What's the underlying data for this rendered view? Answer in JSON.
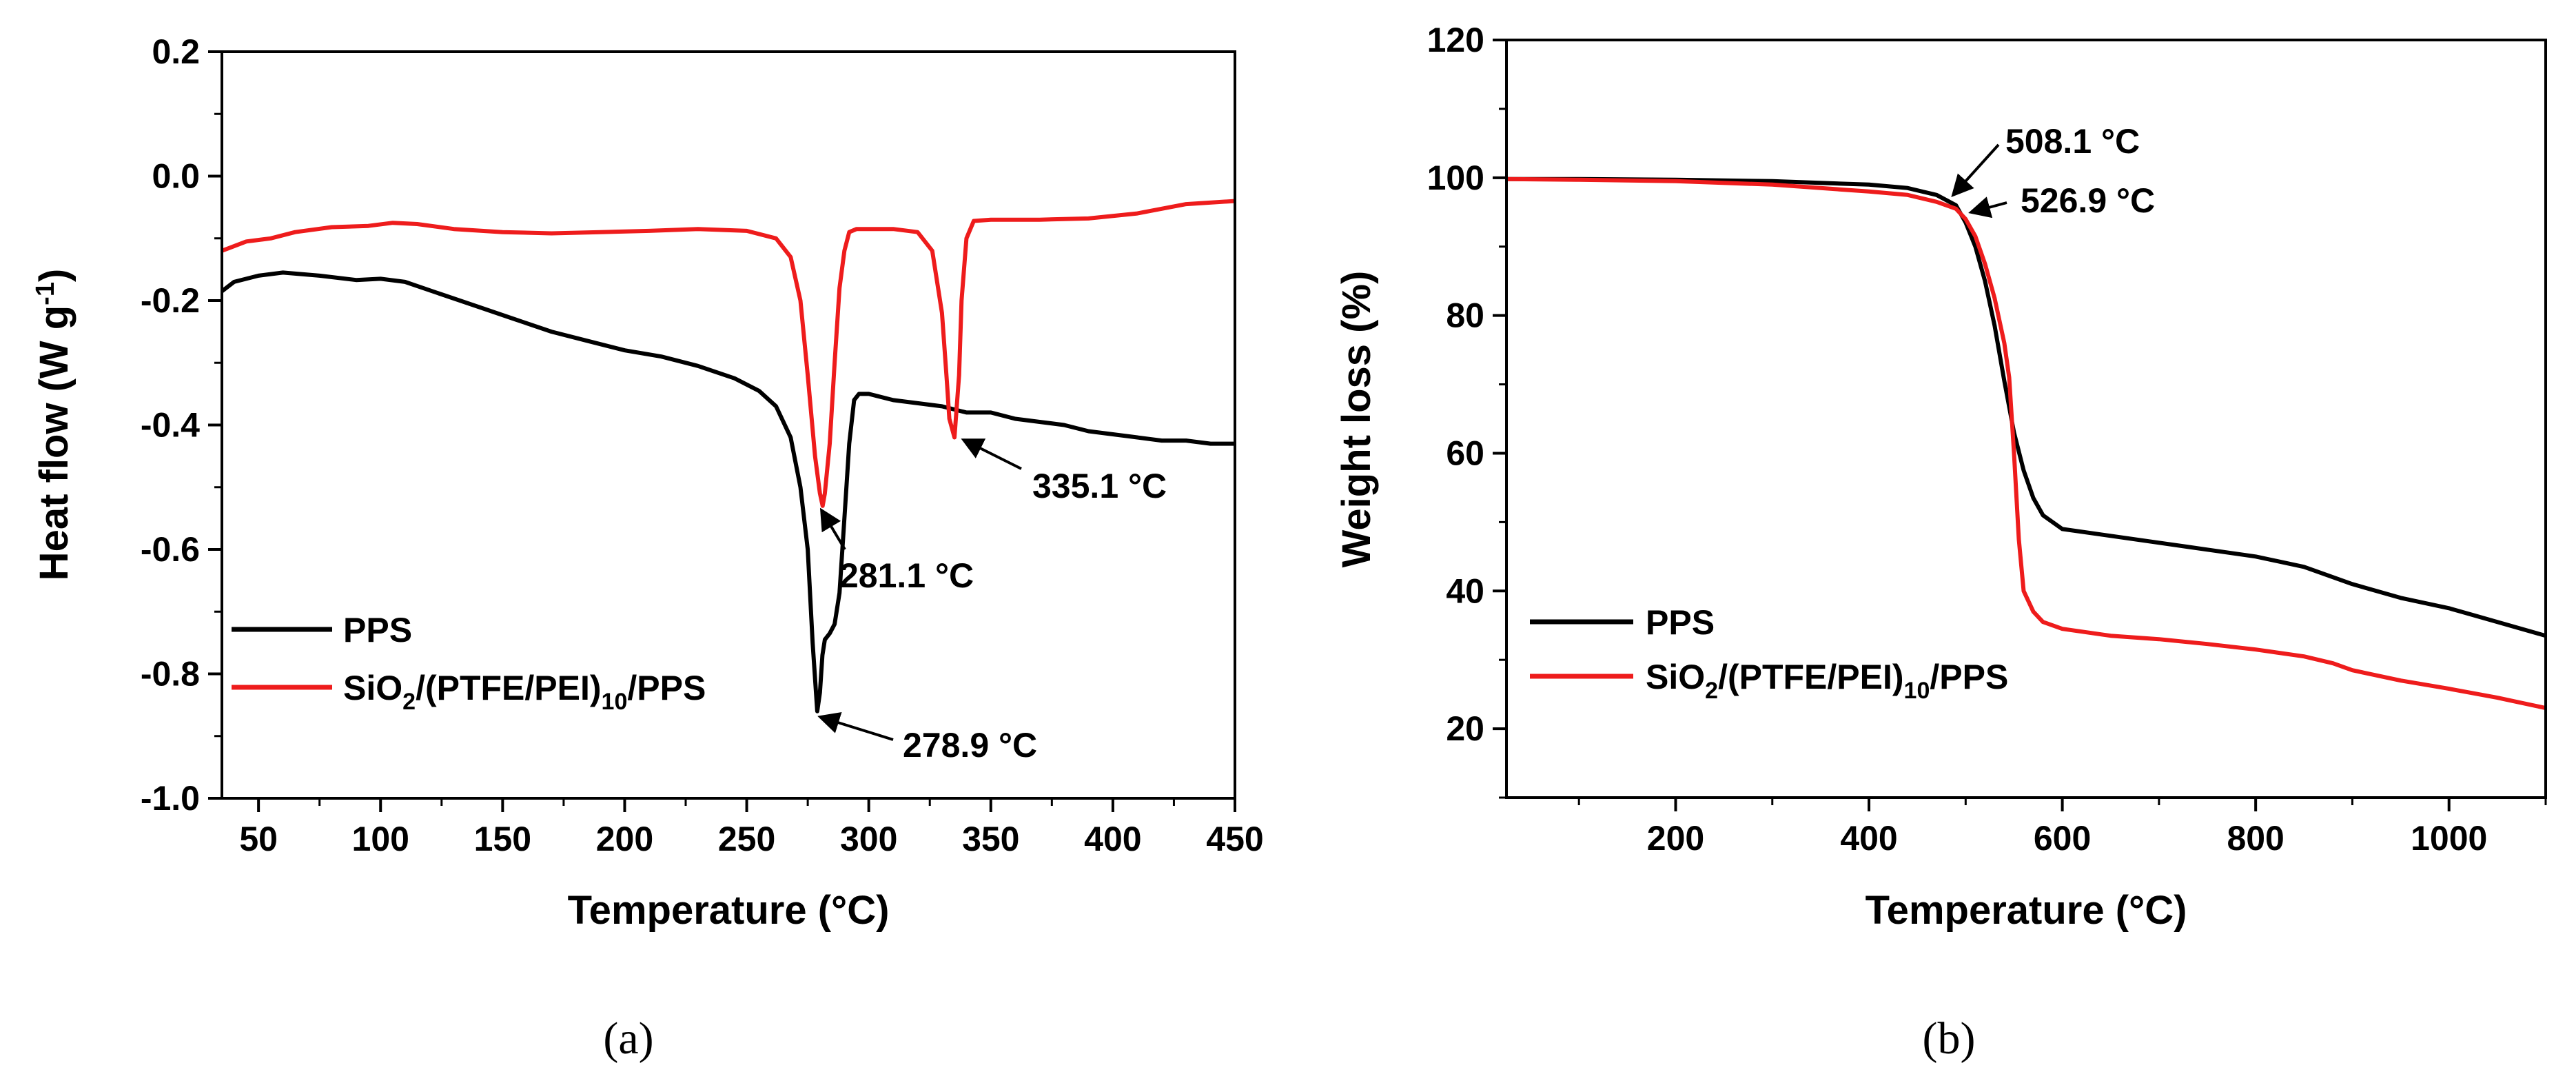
{
  "chart_data": [
    {
      "type": "line",
      "panel_label": "(a)",
      "title": "",
      "xlabel": "Temperature (°C)",
      "ylabel": "Heat flow (W g⁻¹)",
      "xlim": [
        35,
        450
      ],
      "ylim": [
        -1.0,
        0.2
      ],
      "xticks": [
        50,
        100,
        150,
        200,
        250,
        300,
        350,
        400,
        450
      ],
      "yticks": [
        0.2,
        0.0,
        -0.2,
        -0.4,
        -0.6,
        -0.8,
        -1.0
      ],
      "xtick_labels": [
        "50",
        "100",
        "150",
        "200",
        "250",
        "300",
        "350",
        "400",
        "450"
      ],
      "ytick_labels": [
        "0.2",
        "0.0",
        "-0.2",
        "-0.4",
        "-0.6",
        "-0.8",
        "-1.0"
      ],
      "legend": {
        "placement": "bottom-left",
        "entries": [
          {
            "label": "PPS",
            "color": "#000000"
          },
          {
            "label_main": "SiO",
            "label_sub1": "2",
            "label_mid": "/(PTFE/PEI)",
            "label_sub2": "10",
            "label_end": "/PPS",
            "color": "#ee1c1c"
          }
        ]
      },
      "series": [
        {
          "name": "PPS",
          "color": "#000000",
          "x": [
            35,
            40,
            50,
            60,
            75,
            90,
            100,
            110,
            125,
            140,
            155,
            170,
            185,
            200,
            215,
            230,
            245,
            255,
            262,
            268,
            272,
            275,
            277,
            278.9,
            280,
            281,
            282,
            284,
            286,
            288,
            290,
            292,
            294,
            296,
            300,
            310,
            320,
            330,
            340,
            350,
            360,
            370,
            380,
            390,
            400,
            410,
            420,
            430,
            440,
            450
          ],
          "y": [
            -0.185,
            -0.17,
            -0.16,
            -0.155,
            -0.16,
            -0.167,
            -0.165,
            -0.17,
            -0.19,
            -0.21,
            -0.23,
            -0.25,
            -0.265,
            -0.28,
            -0.29,
            -0.305,
            -0.325,
            -0.345,
            -0.37,
            -0.42,
            -0.5,
            -0.6,
            -0.75,
            -0.86,
            -0.83,
            -0.77,
            -0.745,
            -0.735,
            -0.72,
            -0.67,
            -0.55,
            -0.43,
            -0.36,
            -0.35,
            -0.35,
            -0.36,
            -0.365,
            -0.37,
            -0.38,
            -0.38,
            -0.39,
            -0.395,
            -0.4,
            -0.41,
            -0.415,
            -0.42,
            -0.425,
            -0.425,
            -0.43,
            -0.43
          ]
        },
        {
          "name": "SiO2/(PTFE/PEI)10/PPS",
          "color": "#ee1c1c",
          "x": [
            35,
            45,
            55,
            65,
            80,
            95,
            105,
            115,
            130,
            150,
            170,
            190,
            210,
            230,
            250,
            262,
            268,
            272,
            275,
            278,
            280,
            281.1,
            282,
            284,
            286,
            288,
            290,
            292,
            295,
            300,
            310,
            320,
            326,
            330,
            332,
            333,
            335.1,
            337,
            338,
            340,
            343,
            350,
            370,
            390,
            410,
            430,
            450
          ],
          "y": [
            -0.12,
            -0.105,
            -0.1,
            -0.09,
            -0.082,
            -0.08,
            -0.075,
            -0.077,
            -0.085,
            -0.09,
            -0.092,
            -0.09,
            -0.088,
            -0.085,
            -0.088,
            -0.1,
            -0.13,
            -0.2,
            -0.32,
            -0.45,
            -0.51,
            -0.53,
            -0.51,
            -0.43,
            -0.3,
            -0.18,
            -0.12,
            -0.09,
            -0.085,
            -0.085,
            -0.085,
            -0.09,
            -0.12,
            -0.22,
            -0.33,
            -0.39,
            -0.42,
            -0.32,
            -0.2,
            -0.1,
            -0.072,
            -0.07,
            -0.07,
            -0.068,
            -0.06,
            -0.045,
            -0.04
          ]
        }
      ],
      "annotations": [
        {
          "text": "335.1 °C",
          "x": 335.1,
          "y": -0.42
        },
        {
          "text": "281.1 °C",
          "x": 281.1,
          "y": -0.53
        },
        {
          "text": "278.9 °C",
          "x": 278.9,
          "y": -0.86
        }
      ]
    },
    {
      "type": "line",
      "panel_label": "(b)",
      "title": "",
      "xlabel": "Temperature (°C)",
      "ylabel": "Weight loss (%)",
      "xlim": [
        25,
        1100
      ],
      "ylim": [
        10,
        120
      ],
      "xticks": [
        200,
        400,
        600,
        800,
        1000
      ],
      "yticks": [
        20,
        40,
        60,
        80,
        100,
        120
      ],
      "xtick_labels": [
        "200",
        "400",
        "600",
        "800",
        "1000"
      ],
      "ytick_labels": [
        "20",
        "40",
        "60",
        "80",
        "100",
        "120"
      ],
      "legend": {
        "placement": "bottom-left",
        "entries": [
          {
            "label": "PPS",
            "color": "#000000"
          },
          {
            "label_main": "SiO",
            "label_sub1": "2",
            "label_mid": "/(PTFE/PEI)",
            "label_sub2": "10",
            "label_end": "/PPS",
            "color": "#ee1c1c"
          }
        ]
      },
      "series": [
        {
          "name": "PPS",
          "color": "#000000",
          "x": [
            25,
            100,
            200,
            300,
            400,
            440,
            470,
            490,
            500,
            510,
            520,
            530,
            540,
            550,
            560,
            570,
            580,
            600,
            650,
            700,
            750,
            800,
            850,
            880,
            900,
            950,
            1000,
            1050,
            1100
          ],
          "y": [
            99.8,
            99.8,
            99.7,
            99.5,
            99.0,
            98.5,
            97.5,
            96.0,
            93.5,
            90.0,
            85.0,
            78.5,
            70.5,
            63.0,
            57.5,
            53.5,
            51.0,
            49.0,
            48.0,
            47.0,
            46.0,
            45.0,
            43.5,
            42.0,
            41.0,
            39.0,
            37.5,
            35.5,
            33.5
          ]
        },
        {
          "name": "SiO2/(PTFE/PEI)10/PPS",
          "color": "#ee1c1c",
          "x": [
            25,
            100,
            200,
            300,
            400,
            440,
            470,
            490,
            500,
            510,
            520,
            530,
            540,
            545,
            550,
            555,
            560,
            570,
            580,
            600,
            650,
            700,
            750,
            800,
            850,
            880,
            900,
            950,
            1000,
            1050,
            1100
          ],
          "y": [
            99.8,
            99.7,
            99.5,
            99.0,
            98.0,
            97.5,
            96.5,
            95.5,
            94.0,
            91.5,
            87.5,
            82.5,
            76.0,
            71.0,
            60.0,
            47.5,
            40.0,
            37.0,
            35.5,
            34.5,
            33.5,
            33.0,
            32.3,
            31.5,
            30.5,
            29.5,
            28.5,
            27.0,
            25.8,
            24.5,
            23.0
          ]
        }
      ],
      "annotations": [
        {
          "text": "508.1 °C",
          "x": 482,
          "y": 97.0
        },
        {
          "text": "526.9 °C",
          "x": 496,
          "y": 94.6
        }
      ]
    }
  ]
}
